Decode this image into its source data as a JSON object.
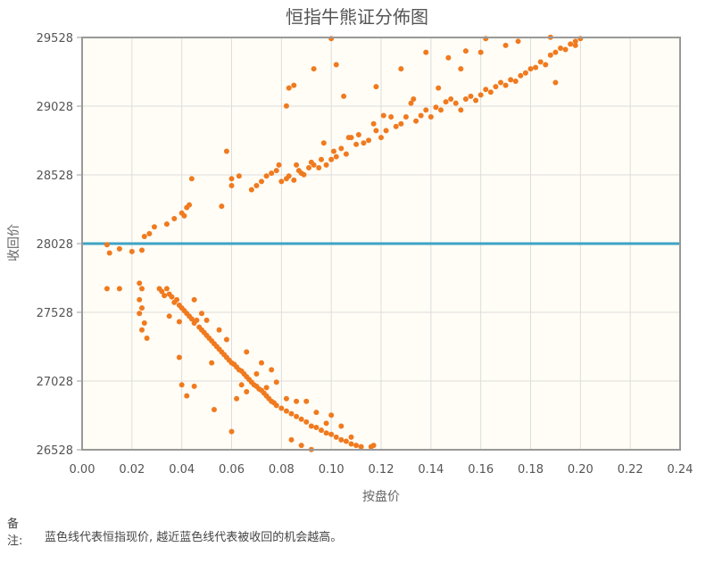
{
  "chart_data": {
    "type": "scatter",
    "title": "恒指牛熊证分佈图",
    "xlabel": "按盘价",
    "ylabel": "收回价",
    "xlim": [
      0.0,
      0.24
    ],
    "ylim": [
      26528,
      29528
    ],
    "x_ticks": [
      "0.00",
      "0.02",
      "0.04",
      "0.06",
      "0.08",
      "0.10",
      "0.12",
      "0.14",
      "0.16",
      "0.18",
      "0.20",
      "0.22",
      "0.24"
    ],
    "y_ticks": [
      "26528",
      "27028",
      "27528",
      "28028",
      "28528",
      "29028",
      "29528"
    ],
    "grid": true,
    "reference_line": {
      "y": 28028,
      "color": "#3ea3c6"
    },
    "point_color": "#f07a1f",
    "series": [
      {
        "points": [
          [
            0.01,
            28020
          ],
          [
            0.011,
            27960
          ],
          [
            0.015,
            27990
          ],
          [
            0.02,
            27970
          ],
          [
            0.024,
            27980
          ],
          [
            0.025,
            28080
          ],
          [
            0.027,
            28100
          ],
          [
            0.029,
            28150
          ],
          [
            0.034,
            28170
          ],
          [
            0.037,
            28210
          ],
          [
            0.04,
            28250
          ],
          [
            0.042,
            28290
          ],
          [
            0.041,
            28230
          ],
          [
            0.043,
            28310
          ],
          [
            0.044,
            28500
          ],
          [
            0.056,
            28300
          ],
          [
            0.058,
            28700
          ],
          [
            0.06,
            28450
          ],
          [
            0.06,
            28500
          ],
          [
            0.063,
            28520
          ],
          [
            0.068,
            28420
          ],
          [
            0.07,
            28450
          ],
          [
            0.072,
            28480
          ],
          [
            0.074,
            28520
          ],
          [
            0.076,
            28540
          ],
          [
            0.078,
            28560
          ],
          [
            0.08,
            28480
          ],
          [
            0.082,
            28500
          ],
          [
            0.083,
            28520
          ],
          [
            0.085,
            28490
          ],
          [
            0.086,
            28600
          ],
          [
            0.087,
            28560
          ],
          [
            0.089,
            28530
          ],
          [
            0.091,
            28580
          ],
          [
            0.092,
            28620
          ],
          [
            0.093,
            28600
          ],
          [
            0.095,
            28580
          ],
          [
            0.096,
            28640
          ],
          [
            0.098,
            28600
          ],
          [
            0.1,
            28640
          ],
          [
            0.101,
            28700
          ],
          [
            0.102,
            28660
          ],
          [
            0.104,
            28720
          ],
          [
            0.106,
            28680
          ],
          [
            0.108,
            28800
          ],
          [
            0.11,
            28750
          ],
          [
            0.111,
            28820
          ],
          [
            0.113,
            28760
          ],
          [
            0.115,
            28780
          ],
          [
            0.117,
            28900
          ],
          [
            0.118,
            28850
          ],
          [
            0.12,
            28800
          ],
          [
            0.122,
            28850
          ],
          [
            0.124,
            28950
          ],
          [
            0.126,
            28880
          ],
          [
            0.128,
            28900
          ],
          [
            0.13,
            28950
          ],
          [
            0.132,
            29050
          ],
          [
            0.134,
            28920
          ],
          [
            0.136,
            28960
          ],
          [
            0.138,
            29000
          ],
          [
            0.14,
            28950
          ],
          [
            0.142,
            29020
          ],
          [
            0.144,
            29000
          ],
          [
            0.146,
            29060
          ],
          [
            0.148,
            29080
          ],
          [
            0.15,
            29050
          ],
          [
            0.152,
            29000
          ],
          [
            0.154,
            29080
          ],
          [
            0.156,
            29100
          ],
          [
            0.158,
            29070
          ],
          [
            0.16,
            29110
          ],
          [
            0.162,
            29150
          ],
          [
            0.164,
            29130
          ],
          [
            0.166,
            29170
          ],
          [
            0.168,
            29200
          ],
          [
            0.17,
            29180
          ],
          [
            0.172,
            29220
          ],
          [
            0.174,
            29210
          ],
          [
            0.176,
            29250
          ],
          [
            0.178,
            29270
          ],
          [
            0.18,
            29300
          ],
          [
            0.182,
            29310
          ],
          [
            0.184,
            29350
          ],
          [
            0.186,
            29330
          ],
          [
            0.188,
            29400
          ],
          [
            0.19,
            29420
          ],
          [
            0.192,
            29450
          ],
          [
            0.194,
            29440
          ],
          [
            0.196,
            29480
          ],
          [
            0.198,
            29500
          ],
          [
            0.2,
            29520
          ],
          [
            0.188,
            29530
          ],
          [
            0.175,
            29500
          ],
          [
            0.162,
            29520
          ],
          [
            0.154,
            29430
          ],
          [
            0.147,
            29380
          ],
          [
            0.138,
            29420
          ],
          [
            0.128,
            29300
          ],
          [
            0.118,
            29170
          ],
          [
            0.105,
            29100
          ],
          [
            0.1,
            29520
          ],
          [
            0.102,
            29330
          ],
          [
            0.093,
            29300
          ],
          [
            0.085,
            29180
          ],
          [
            0.083,
            29160
          ],
          [
            0.082,
            29030
          ],
          [
            0.079,
            28600
          ],
          [
            0.088,
            28540
          ],
          [
            0.097,
            28760
          ],
          [
            0.107,
            28800
          ],
          [
            0.121,
            28960
          ],
          [
            0.133,
            29080
          ],
          [
            0.143,
            29160
          ],
          [
            0.152,
            29300
          ],
          [
            0.16,
            29420
          ],
          [
            0.17,
            29470
          ],
          [
            0.19,
            29200
          ],
          [
            0.198,
            29470
          ],
          [
            0.015,
            27700
          ],
          [
            0.01,
            27700
          ]
        ]
      },
      {
        "points": [
          [
            0.023,
            27740
          ],
          [
            0.024,
            27700
          ],
          [
            0.023,
            27620
          ],
          [
            0.024,
            27560
          ],
          [
            0.023,
            27520
          ],
          [
            0.025,
            27450
          ],
          [
            0.024,
            27400
          ],
          [
            0.026,
            27340
          ],
          [
            0.031,
            27700
          ],
          [
            0.032,
            27680
          ],
          [
            0.033,
            27650
          ],
          [
            0.034,
            27700
          ],
          [
            0.035,
            27660
          ],
          [
            0.036,
            27640
          ],
          [
            0.037,
            27600
          ],
          [
            0.038,
            27620
          ],
          [
            0.039,
            27580
          ],
          [
            0.04,
            27560
          ],
          [
            0.041,
            27540
          ],
          [
            0.042,
            27520
          ],
          [
            0.043,
            27500
          ],
          [
            0.044,
            27480
          ],
          [
            0.045,
            27450
          ],
          [
            0.046,
            27470
          ],
          [
            0.047,
            27420
          ],
          [
            0.048,
            27400
          ],
          [
            0.049,
            27380
          ],
          [
            0.05,
            27360
          ],
          [
            0.051,
            27340
          ],
          [
            0.052,
            27320
          ],
          [
            0.053,
            27300
          ],
          [
            0.054,
            27280
          ],
          [
            0.055,
            27260
          ],
          [
            0.056,
            27240
          ],
          [
            0.057,
            27220
          ],
          [
            0.058,
            27200
          ],
          [
            0.059,
            27180
          ],
          [
            0.06,
            27160
          ],
          [
            0.061,
            27150
          ],
          [
            0.062,
            27130
          ],
          [
            0.063,
            27110
          ],
          [
            0.064,
            27100
          ],
          [
            0.065,
            27080
          ],
          [
            0.066,
            27060
          ],
          [
            0.067,
            27040
          ],
          [
            0.068,
            27020
          ],
          [
            0.069,
            27000
          ],
          [
            0.07,
            26990
          ],
          [
            0.071,
            26970
          ],
          [
            0.072,
            26960
          ],
          [
            0.073,
            26940
          ],
          [
            0.074,
            26920
          ],
          [
            0.075,
            26900
          ],
          [
            0.076,
            26880
          ],
          [
            0.077,
            26870
          ],
          [
            0.078,
            26850
          ],
          [
            0.08,
            26830
          ],
          [
            0.082,
            26810
          ],
          [
            0.084,
            26790
          ],
          [
            0.086,
            26770
          ],
          [
            0.088,
            26750
          ],
          [
            0.09,
            26730
          ],
          [
            0.092,
            26700
          ],
          [
            0.094,
            26690
          ],
          [
            0.096,
            26670
          ],
          [
            0.098,
            26650
          ],
          [
            0.1,
            26640
          ],
          [
            0.102,
            26620
          ],
          [
            0.104,
            26600
          ],
          [
            0.106,
            26590
          ],
          [
            0.108,
            26570
          ],
          [
            0.11,
            26560
          ],
          [
            0.112,
            26550
          ],
          [
            0.116,
            26550
          ],
          [
            0.117,
            26560
          ],
          [
            0.035,
            27500
          ],
          [
            0.039,
            27460
          ],
          [
            0.04,
            27000
          ],
          [
            0.042,
            26920
          ],
          [
            0.045,
            26990
          ],
          [
            0.052,
            27160
          ],
          [
            0.053,
            26820
          ],
          [
            0.06,
            26660
          ],
          [
            0.062,
            26900
          ],
          [
            0.064,
            27000
          ],
          [
            0.066,
            26950
          ],
          [
            0.07,
            27080
          ],
          [
            0.074,
            26980
          ],
          [
            0.078,
            27020
          ],
          [
            0.082,
            26900
          ],
          [
            0.086,
            26880
          ],
          [
            0.09,
            26880
          ],
          [
            0.094,
            26800
          ],
          [
            0.098,
            26720
          ],
          [
            0.1,
            26780
          ],
          [
            0.104,
            26700
          ],
          [
            0.108,
            26620
          ],
          [
            0.084,
            26600
          ],
          [
            0.088,
            26560
          ],
          [
            0.092,
            26530
          ],
          [
            0.045,
            27620
          ],
          [
            0.048,
            27520
          ],
          [
            0.05,
            27470
          ],
          [
            0.055,
            27400
          ],
          [
            0.058,
            27330
          ],
          [
            0.066,
            27240
          ],
          [
            0.072,
            27160
          ],
          [
            0.076,
            27110
          ],
          [
            0.039,
            27200
          ]
        ]
      }
    ]
  },
  "note": {
    "key_line1": "备",
    "key_line2": "注:",
    "text": "蓝色线代表恒指现价, 越近蓝色线代表被收回的机会越高。"
  }
}
